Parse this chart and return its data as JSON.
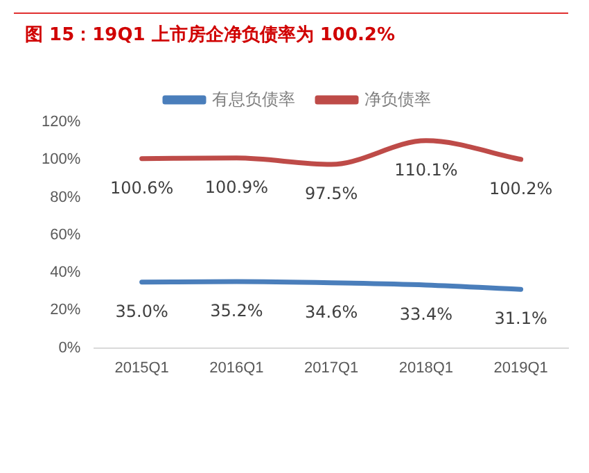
{
  "chart_data": {
    "type": "line",
    "title": "图 15：19Q1 上市房企净负债率为 100.2%",
    "categories": [
      "2015Q1",
      "2016Q1",
      "2017Q1",
      "2018Q1",
      "2019Q1"
    ],
    "series": [
      {
        "name": "有息负债率",
        "color": "#4a7ebb",
        "values": [
          35.0,
          35.2,
          34.6,
          33.4,
          31.1
        ],
        "value_labels": [
          "35.0%",
          "35.2%",
          "34.6%",
          "33.4%",
          "31.1%"
        ]
      },
      {
        "name": "净负债率",
        "color": "#be4b48",
        "values": [
          100.6,
          100.9,
          97.5,
          110.1,
          100.2
        ],
        "value_labels": [
          "100.6%",
          "100.9%",
          "97.5%",
          "110.1%",
          "100.2%"
        ]
      }
    ],
    "ylim": [
      0,
      120
    ],
    "yticks": [
      {
        "value": 0,
        "label": "0%"
      },
      {
        "value": 20,
        "label": "20%"
      },
      {
        "value": 40,
        "label": "40%"
      },
      {
        "value": 60,
        "label": "60%"
      },
      {
        "value": 80,
        "label": "80%"
      },
      {
        "value": 100,
        "label": "100%"
      },
      {
        "value": 120,
        "label": "120%"
      }
    ],
    "grid": false,
    "legend": "top",
    "marker": "none",
    "line_style": "solid"
  }
}
